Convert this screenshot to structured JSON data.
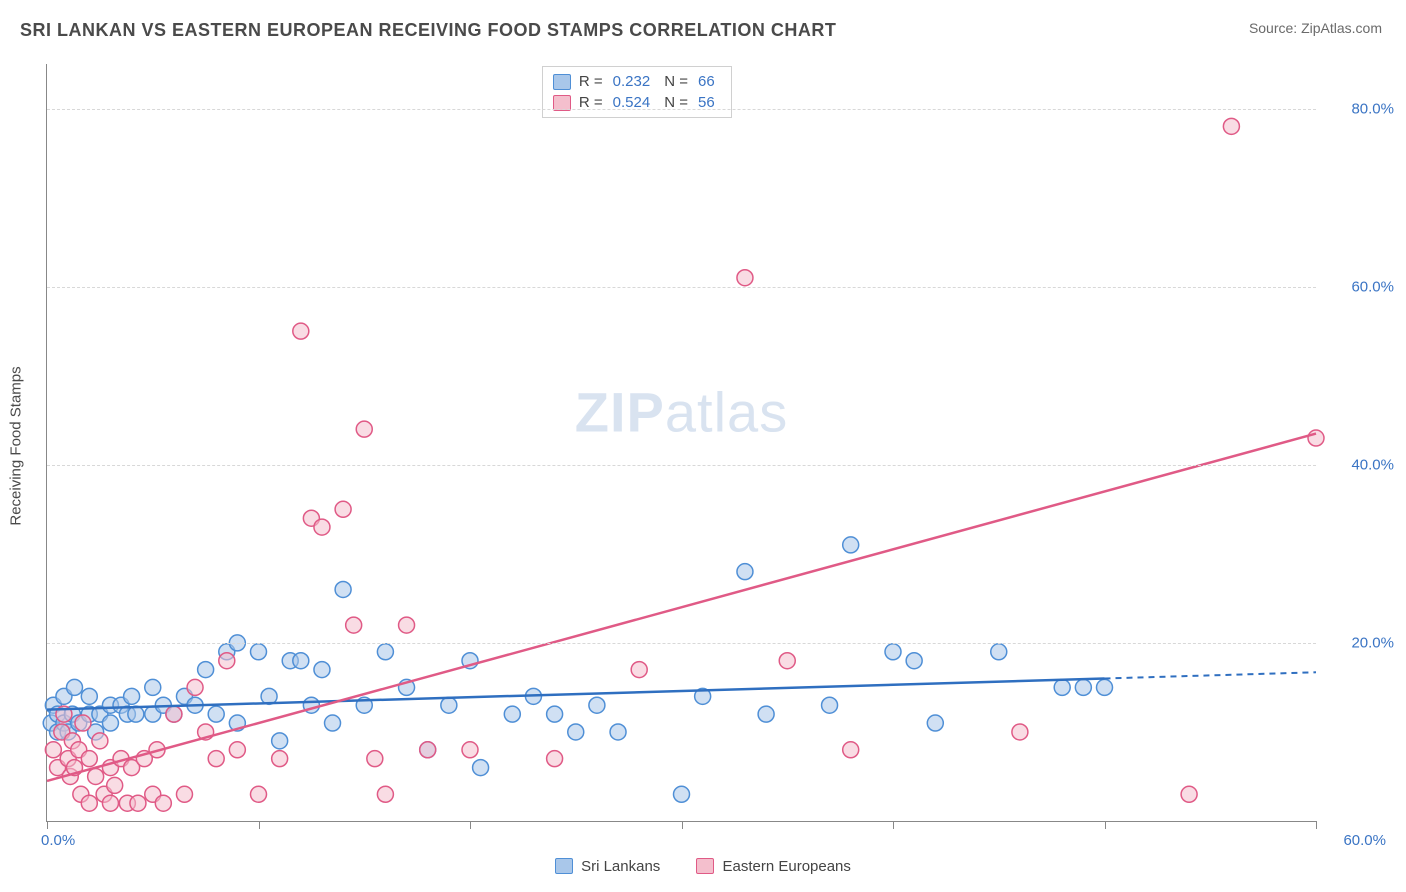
{
  "header": {
    "title": "SRI LANKAN VS EASTERN EUROPEAN RECEIVING FOOD STAMPS CORRELATION CHART",
    "source": "Source: ZipAtlas.com"
  },
  "chart": {
    "type": "scatter",
    "background_color": "#ffffff",
    "grid_color": "#d8d8d8",
    "axis_color": "#888888",
    "ylabel": "Receiving Food Stamps",
    "label_fontsize": 15,
    "tick_color": "#3a74c4",
    "xlim": [
      0,
      60
    ],
    "ylim": [
      0,
      85
    ],
    "x_ticks": [
      0,
      10,
      20,
      30,
      40,
      50,
      60
    ],
    "x_tick_labels_shown": {
      "0": "0.0%",
      "60": "60.0%"
    },
    "y_ticks": [
      20,
      40,
      60,
      80
    ],
    "y_tick_labels": [
      "20.0%",
      "40.0%",
      "60.0%",
      "80.0%"
    ],
    "watermark": {
      "text_bold": "ZIP",
      "text_rest": "atlas",
      "color": "#d9e3f0",
      "fontsize": 56
    },
    "marker_radius": 8,
    "marker_stroke_width": 1.5,
    "line_width": 2.5,
    "series": [
      {
        "key": "sri_lankans",
        "label": "Sri Lankans",
        "color_fill": "#a9c7ea",
        "color_stroke": "#4f8fd6",
        "fill_opacity": 0.55,
        "R": "0.232",
        "N": "66",
        "trend": {
          "x1": 0,
          "y1": 12.5,
          "x2": 50,
          "y2": 16.0,
          "dash_extend_to": 60,
          "color": "#2f6fc0"
        },
        "points": [
          [
            0.2,
            11
          ],
          [
            0.3,
            13
          ],
          [
            0.5,
            10
          ],
          [
            0.5,
            12
          ],
          [
            0.8,
            11
          ],
          [
            0.8,
            14
          ],
          [
            1.0,
            10
          ],
          [
            1.2,
            12
          ],
          [
            1.3,
            15
          ],
          [
            1.5,
            11
          ],
          [
            2.0,
            12
          ],
          [
            2.0,
            14
          ],
          [
            2.3,
            10
          ],
          [
            2.5,
            12
          ],
          [
            3.0,
            13
          ],
          [
            3.0,
            11
          ],
          [
            3.5,
            13
          ],
          [
            3.8,
            12
          ],
          [
            4.0,
            14
          ],
          [
            4.2,
            12
          ],
          [
            5.0,
            12
          ],
          [
            5.0,
            15
          ],
          [
            5.5,
            13
          ],
          [
            6.0,
            12
          ],
          [
            6.5,
            14
          ],
          [
            7.0,
            13
          ],
          [
            7.5,
            17
          ],
          [
            8.0,
            12
          ],
          [
            8.5,
            19
          ],
          [
            9.0,
            20
          ],
          [
            9.0,
            11
          ],
          [
            10.0,
            19
          ],
          [
            10.5,
            14
          ],
          [
            11.0,
            9
          ],
          [
            11.5,
            18
          ],
          [
            12.0,
            18
          ],
          [
            12.5,
            13
          ],
          [
            13.0,
            17
          ],
          [
            13.5,
            11
          ],
          [
            14.0,
            26
          ],
          [
            15.0,
            13
          ],
          [
            16.0,
            19
          ],
          [
            17.0,
            15
          ],
          [
            18.0,
            8
          ],
          [
            19.0,
            13
          ],
          [
            20.0,
            18
          ],
          [
            20.5,
            6
          ],
          [
            22.0,
            12
          ],
          [
            23.0,
            14
          ],
          [
            24.0,
            12
          ],
          [
            25.0,
            10
          ],
          [
            26.0,
            13
          ],
          [
            27.0,
            10
          ],
          [
            30.0,
            3
          ],
          [
            31.0,
            14
          ],
          [
            33.0,
            28
          ],
          [
            34.0,
            12
          ],
          [
            37.0,
            13
          ],
          [
            38.0,
            31
          ],
          [
            40.0,
            19
          ],
          [
            41.0,
            18
          ],
          [
            42.0,
            11
          ],
          [
            45.0,
            19
          ],
          [
            48.0,
            15
          ],
          [
            49.0,
            15
          ],
          [
            50.0,
            15
          ]
        ]
      },
      {
        "key": "eastern_europeans",
        "label": "Eastern Europeans",
        "color_fill": "#f4bfcd",
        "color_stroke": "#e05a86",
        "fill_opacity": 0.55,
        "R": "0.524",
        "N": "56",
        "trend": {
          "x1": 0,
          "y1": 4.5,
          "x2": 60,
          "y2": 43.5,
          "color": "#e05a86"
        },
        "points": [
          [
            0.3,
            8
          ],
          [
            0.5,
            6
          ],
          [
            0.7,
            10
          ],
          [
            0.8,
            12
          ],
          [
            1.0,
            7
          ],
          [
            1.1,
            5
          ],
          [
            1.2,
            9
          ],
          [
            1.3,
            6
          ],
          [
            1.5,
            8
          ],
          [
            1.6,
            3
          ],
          [
            1.7,
            11
          ],
          [
            2.0,
            7
          ],
          [
            2.0,
            2
          ],
          [
            2.3,
            5
          ],
          [
            2.5,
            9
          ],
          [
            2.7,
            3
          ],
          [
            3.0,
            6
          ],
          [
            3.0,
            2
          ],
          [
            3.2,
            4
          ],
          [
            3.5,
            7
          ],
          [
            3.8,
            2
          ],
          [
            4.0,
            6
          ],
          [
            4.3,
            2
          ],
          [
            4.6,
            7
          ],
          [
            5.0,
            3
          ],
          [
            5.2,
            8
          ],
          [
            5.5,
            2
          ],
          [
            6.0,
            12
          ],
          [
            6.5,
            3
          ],
          [
            7.0,
            15
          ],
          [
            7.5,
            10
          ],
          [
            8.0,
            7
          ],
          [
            8.5,
            18
          ],
          [
            9.0,
            8
          ],
          [
            10.0,
            3
          ],
          [
            11.0,
            7
          ],
          [
            12.0,
            55
          ],
          [
            12.5,
            34
          ],
          [
            13.0,
            33
          ],
          [
            14.0,
            35
          ],
          [
            14.5,
            22
          ],
          [
            15.0,
            44
          ],
          [
            15.5,
            7
          ],
          [
            16.0,
            3
          ],
          [
            17.0,
            22
          ],
          [
            18.0,
            8
          ],
          [
            20.0,
            8
          ],
          [
            24.0,
            7
          ],
          [
            28.0,
            17
          ],
          [
            33.0,
            61
          ],
          [
            35.0,
            18
          ],
          [
            38.0,
            8
          ],
          [
            46.0,
            10
          ],
          [
            54.0,
            3
          ],
          [
            56.0,
            78
          ],
          [
            60.0,
            43
          ]
        ]
      }
    ]
  },
  "legend_top": {
    "R_label": "R =",
    "N_label": "N ="
  }
}
